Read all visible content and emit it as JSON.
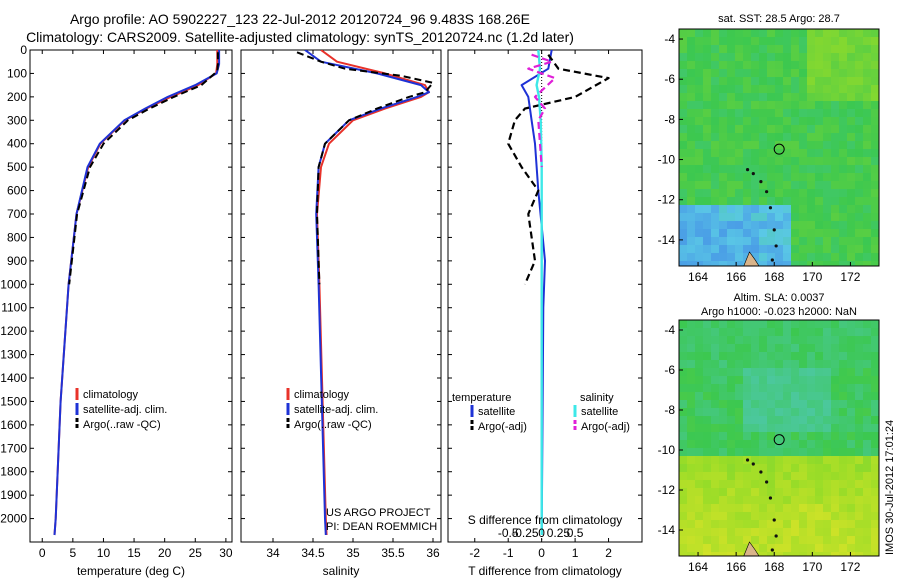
{
  "header": {
    "line1": "Argo profile: AO 5902227_123 22-Jul-2012 20120724_96 9.483S 168.26E",
    "line2": "Climatology: CARS2009. Satellite-adjusted climatology: synTS_20120724.nc (1.2d later)"
  },
  "credits": {
    "line1": "US ARGO PROJECT",
    "line2": "PI: DEAN ROEMMICH",
    "vertical": "IMOS 30-Jul-2012 17:01:24"
  },
  "colors": {
    "climatology": "#e8322a",
    "satellite": "#1e32d6",
    "argo": "#000000",
    "salinity_sat": "#3ee8e8",
    "salinity_argo": "#e020d8"
  },
  "chart_data": [
    {
      "type": "line",
      "panel": "temperature",
      "xlabel": "temperature (deg C)",
      "ylabel": "",
      "xlim": [
        -2,
        31
      ],
      "ylim": [
        2100,
        0
      ],
      "xticks": [
        0,
        5,
        10,
        15,
        20,
        25,
        30
      ],
      "yticks": [
        0,
        100,
        200,
        300,
        400,
        500,
        600,
        700,
        800,
        900,
        1000,
        1100,
        1200,
        1300,
        1400,
        1500,
        1600,
        1700,
        1800,
        1900,
        2000
      ],
      "legend": [
        "climatology",
        "satellite-adj. clim.",
        "Argo(..raw -QC)"
      ],
      "series": [
        {
          "name": "climatology",
          "depth": [
            0,
            60,
            100,
            150,
            200,
            250,
            300,
            400,
            500,
            700,
            1000,
            1500,
            2000,
            2070
          ],
          "values": [
            28.6,
            28.6,
            28.4,
            25.5,
            21.0,
            17.0,
            13.5,
            9.5,
            7.5,
            5.6,
            4.3,
            3.0,
            2.2,
            2.0
          ]
        },
        {
          "name": "satellite-adj. clim.",
          "depth": [
            0,
            60,
            100,
            150,
            200,
            250,
            300,
            400,
            500,
            700,
            1000,
            1500,
            2000,
            2070
          ],
          "values": [
            28.9,
            28.9,
            28.5,
            25.0,
            20.5,
            16.8,
            13.4,
            9.4,
            7.4,
            5.6,
            4.3,
            3.0,
            2.2,
            2.0
          ]
        },
        {
          "name": "Argo(..raw -QC)",
          "depth": [
            10,
            60,
            90,
            150,
            200,
            250,
            300,
            400,
            500,
            700,
            1000
          ],
          "values": [
            28.7,
            28.7,
            28.6,
            26.0,
            21.5,
            17.5,
            14.0,
            10.0,
            7.8,
            5.7,
            4.4
          ]
        }
      ]
    },
    {
      "type": "line",
      "panel": "salinity",
      "xlabel": "salinity",
      "xlim": [
        33.6,
        36.1
      ],
      "ylim": [
        2100,
        0
      ],
      "xticks": [
        34,
        34.5,
        35,
        35.5,
        36
      ],
      "legend": [
        "climatology",
        "satellite-adj. clim.",
        "Argo(..raw -QC)"
      ],
      "series": [
        {
          "name": "climatology",
          "depth": [
            0,
            50,
            100,
            150,
            180,
            200,
            250,
            300,
            400,
            500,
            700,
            1000,
            1500,
            2000,
            2070
          ],
          "values": [
            34.6,
            34.8,
            35.4,
            35.9,
            35.95,
            35.85,
            35.4,
            35.0,
            34.7,
            34.6,
            34.55,
            34.58,
            34.62,
            34.66,
            34.67
          ]
        },
        {
          "name": "satellite-adj. clim.",
          "depth": [
            0,
            50,
            100,
            150,
            180,
            200,
            250,
            300,
            400,
            500,
            700,
            1000,
            1500,
            2000,
            2070
          ],
          "values": [
            34.4,
            34.6,
            35.3,
            35.85,
            35.95,
            35.8,
            35.35,
            34.95,
            34.65,
            34.57,
            34.54,
            34.57,
            34.61,
            34.65,
            34.66
          ]
        },
        {
          "name": "Argo(..raw -QC)",
          "depth": [
            10,
            50,
            80,
            110,
            140,
            160,
            180,
            200,
            250,
            300,
            400,
            500,
            700,
            1000
          ],
          "values": [
            34.3,
            34.6,
            34.9,
            35.6,
            36.0,
            35.95,
            35.9,
            35.7,
            35.3,
            34.95,
            34.65,
            34.57,
            34.55,
            34.58
          ]
        }
      ]
    },
    {
      "type": "line",
      "panel": "difference",
      "xlabel_top": "S difference from climatology",
      "xlabel": "T difference from climatology",
      "xlim": [
        -2.8,
        3.0
      ],
      "ylim": [
        2100,
        0
      ],
      "xticks": [
        -2,
        -1,
        0,
        1,
        2
      ],
      "xticks_top": [
        "-0.5",
        "-0.25",
        "0",
        "0.25",
        "0.5"
      ],
      "legend": [
        "temperature",
        "satellite",
        "Argo(-adj)",
        "salinity",
        "satellite",
        "Argo(-adj)"
      ],
      "series": [
        {
          "name": "temperature satellite",
          "depth": [
            0,
            80,
            150,
            200,
            300,
            400,
            600,
            900,
            1100,
            2070
          ],
          "values": [
            0.3,
            0.2,
            -0.6,
            -0.4,
            -0.3,
            -0.2,
            -0.1,
            0.1,
            0.05,
            0.0
          ]
        },
        {
          "name": "temperature Argo(-adj)",
          "depth": [
            20,
            80,
            120,
            200,
            250,
            300,
            400,
            500,
            600,
            700,
            900,
            1000
          ],
          "values": [
            0.2,
            0.5,
            2.0,
            1.0,
            -0.5,
            -0.8,
            -1.0,
            -0.6,
            -0.1,
            -0.4,
            -0.2,
            -0.5
          ]
        },
        {
          "name": "salinity satellite",
          "depth": [
            0,
            80,
            150,
            200,
            300,
            500,
            1000,
            2070
          ],
          "values": [
            -0.1,
            -0.05,
            -0.15,
            -0.08,
            -0.03,
            0.0,
            0.0,
            0.0
          ]
        },
        {
          "name": "salinity Argo(-adj)",
          "depth": [
            20,
            50,
            80,
            120,
            160,
            200,
            250,
            300,
            400,
            500
          ],
          "values": [
            -0.3,
            0.3,
            -0.4,
            0.4,
            0.1,
            -0.2,
            0.1,
            -0.1,
            -0.05,
            0.0
          ]
        }
      ]
    },
    {
      "type": "heatmap",
      "panel": "sst_map",
      "title": "sat. SST: 28.5 Argo: 28.7",
      "xlim": [
        163,
        173.5
      ],
      "ylim": [
        -15.3,
        -3.5
      ],
      "xticks": [
        164,
        166,
        168,
        170,
        172
      ],
      "yticks": [
        -4,
        -6,
        -8,
        -10,
        -12,
        -14
      ],
      "profile_location": [
        168.26,
        -9.483
      ]
    },
    {
      "type": "heatmap",
      "panel": "sla_map",
      "title": "Altim. SLA: 0.0037",
      "subtitle": "Argo h1000: -0.023 h2000: NaN",
      "xlim": [
        163,
        173.5
      ],
      "ylim": [
        -15.3,
        -3.5
      ],
      "xticks": [
        164,
        166,
        168,
        170,
        172
      ],
      "yticks": [
        -4,
        -6,
        -8,
        -10,
        -12,
        -14
      ],
      "profile_location": [
        168.26,
        -9.483
      ]
    }
  ]
}
